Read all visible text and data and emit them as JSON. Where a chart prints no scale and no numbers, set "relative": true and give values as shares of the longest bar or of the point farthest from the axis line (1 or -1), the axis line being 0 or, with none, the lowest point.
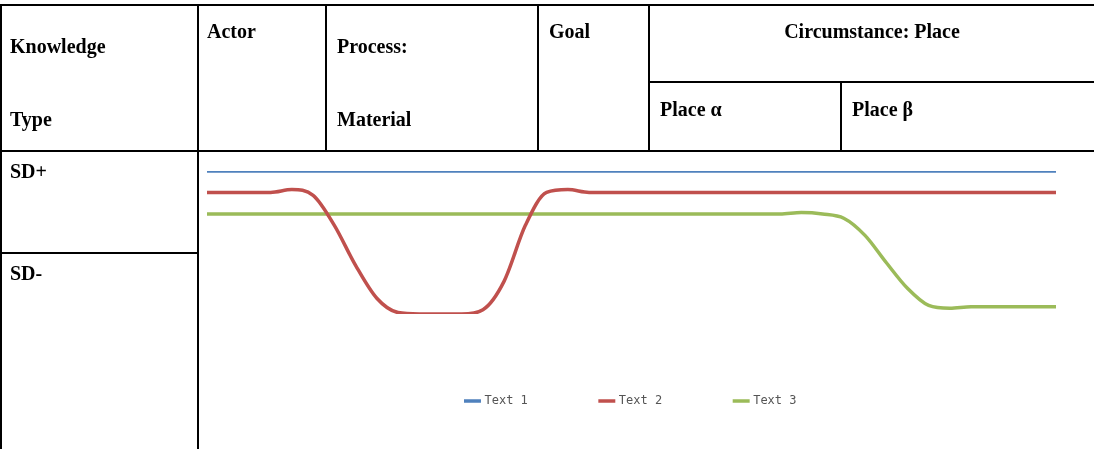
{
  "chart_data": {
    "type": "line",
    "relative": true,
    "legend": "bottom",
    "grid": false,
    "marker": "none",
    "line_style": "solid",
    "categories": [
      null,
      null,
      null,
      null,
      null,
      null,
      null,
      null,
      null,
      null,
      null,
      null,
      null,
      null,
      null,
      null,
      null,
      null,
      null,
      null,
      null,
      null,
      null,
      null,
      null,
      null,
      null,
      null,
      null,
      null,
      null,
      null,
      null,
      null,
      null,
      null,
      null,
      null,
      null,
      null,
      null
    ],
    "series": [
      {
        "name": "Text 1",
        "color": "#4f81bd",
        "values": [
          1,
          1,
          1,
          1,
          1,
          1,
          1,
          1,
          1,
          1,
          1,
          1,
          1,
          1,
          1,
          1,
          1,
          1,
          1,
          1,
          1,
          1,
          1,
          1,
          1,
          1,
          1,
          1,
          1,
          1,
          1,
          1,
          1,
          1,
          1,
          1,
          1,
          1,
          1,
          1,
          1
        ]
      },
      {
        "name": "Text 2",
        "color": "#c0504d",
        "values": [
          0.85,
          0.85,
          0.85,
          0.85,
          0.87,
          0.83,
          0.62,
          0.34,
          0.11,
          0.01,
          0,
          0,
          0,
          0.03,
          0.23,
          0.62,
          0.85,
          0.87,
          0.85,
          0.85,
          0.85,
          0.85,
          0.85,
          0.85,
          0.85,
          0.85,
          0.85,
          0.85,
          0.85,
          0.85,
          0.85,
          0.85,
          0.85,
          0.85,
          0.85,
          0.85,
          0.85,
          0.85,
          0.85,
          0.85,
          0.85
        ]
      },
      {
        "name": "Text 3",
        "color": "#9bbb59",
        "values": [
          0.7,
          0.7,
          0.7,
          0.7,
          0.7,
          0.7,
          0.7,
          0.7,
          0.7,
          0.7,
          0.7,
          0.7,
          0.7,
          0.7,
          0.7,
          0.7,
          0.7,
          0.7,
          0.7,
          0.7,
          0.7,
          0.7,
          0.7,
          0.7,
          0.7,
          0.7,
          0.7,
          0.7,
          0.71,
          0.7,
          0.67,
          0.55,
          0.36,
          0.18,
          0.06,
          0.04,
          0.05,
          0.05,
          0.05,
          0.05,
          0.05
        ]
      }
    ],
    "annotations": [
      "Knowledge Type",
      "Actor",
      "Process: Material",
      "Goal",
      "Circumstance: Place",
      "Place α",
      "Place β",
      "SD+",
      "SD-"
    ]
  }
}
